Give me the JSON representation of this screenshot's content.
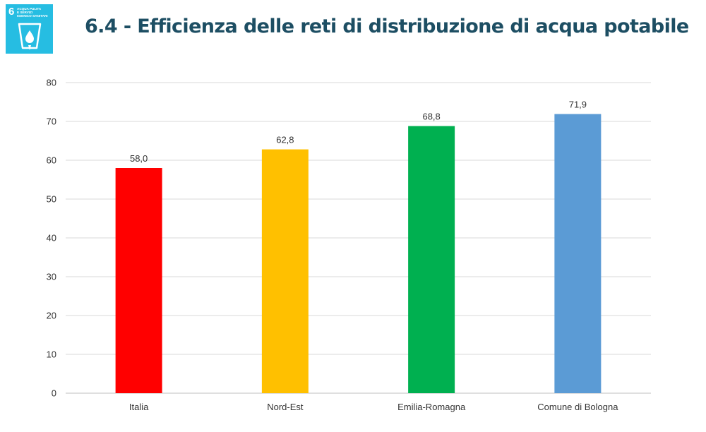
{
  "header": {
    "title": "6.4 - Efficienza delle reti di distribuzione di acqua potabile",
    "sdg_badge": {
      "number": "6",
      "lines": [
        "ACQUA PULITA",
        "E SERVIZI",
        "IGIENICO-SANITARI"
      ],
      "color": "#26bde2",
      "icon": "water-drop-glass-icon"
    }
  },
  "chart_data": {
    "type": "bar",
    "categories": [
      "Italia",
      "Nord-Est",
      "Emilia-Romagna",
      "Comune di Bologna"
    ],
    "values": [
      58.0,
      62.8,
      68.8,
      71.9
    ],
    "data_labels": [
      "58,0",
      "62,8",
      "68,8",
      "71,9"
    ],
    "bar_colors": [
      "#ff0000",
      "#ffc000",
      "#00b050",
      "#5b9bd5"
    ],
    "title": "",
    "xlabel": "",
    "ylabel": "",
    "ylim": [
      0,
      80
    ],
    "yticks": [
      0,
      10,
      20,
      30,
      40,
      50,
      60,
      70,
      80
    ],
    "grid": true,
    "legend": "none"
  }
}
